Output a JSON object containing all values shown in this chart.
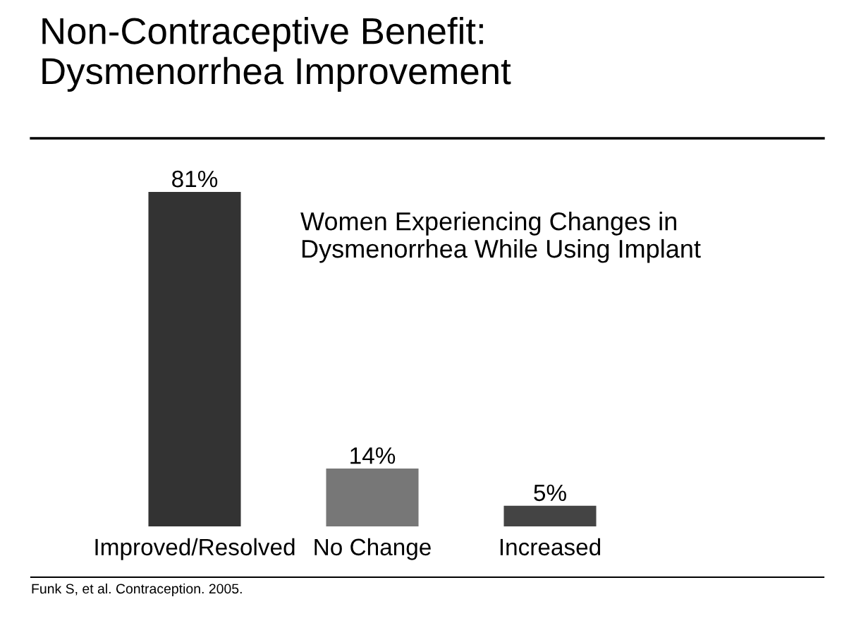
{
  "chart_data": {
    "type": "bar",
    "title": "Non-Contraceptive Benefit:\nDysmenorrhea Improvement",
    "subtitle": "Women Experiencing Changes in\nDysmenorrhea While Using Implant",
    "categories": [
      "Improved/Resolved",
      "No Change",
      "Increased"
    ],
    "values": [
      81,
      14,
      5
    ],
    "colors": [
      "#333333",
      "#777777",
      "#444444"
    ],
    "value_labels": [
      "81%",
      "14%",
      "5%"
    ],
    "annotations": [
      "Funk S, et al. Contraception. 2005."
    ]
  }
}
